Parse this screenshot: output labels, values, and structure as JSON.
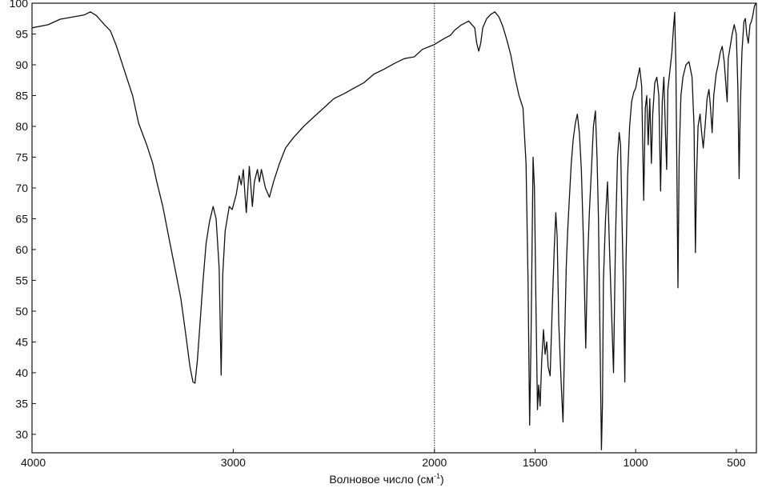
{
  "chart_data": {
    "type": "line",
    "title": "",
    "xlabel": "Волновое число (см",
    "xlabel_sup": "-1",
    "xlabel_close": ")",
    "ylabel": "",
    "xlim": [
      4000,
      400
    ],
    "ylim": [
      27,
      100
    ],
    "x_reversed": true,
    "grid": false,
    "x_ticks": [
      {
        "value": 4000,
        "label": "4000"
      },
      {
        "value": 3000,
        "label": "3000"
      },
      {
        "value": 2000,
        "label": "2000"
      },
      {
        "value": 1500,
        "label": "1500"
      },
      {
        "value": 1000,
        "label": "1000"
      },
      {
        "value": 500,
        "label": "500"
      }
    ],
    "y_ticks": [
      {
        "value": 100,
        "label": "100"
      },
      {
        "value": 95,
        "label": "95"
      },
      {
        "value": 90,
        "label": "90"
      },
      {
        "value": 85,
        "label": "85"
      },
      {
        "value": 80,
        "label": "80"
      },
      {
        "value": 75,
        "label": "75"
      },
      {
        "value": 70,
        "label": "70"
      },
      {
        "value": 65,
        "label": "65"
      },
      {
        "value": 60,
        "label": "60"
      },
      {
        "value": 55,
        "label": "55"
      },
      {
        "value": 50,
        "label": "50"
      },
      {
        "value": 45,
        "label": "45"
      },
      {
        "value": 40,
        "label": "40"
      },
      {
        "value": 35,
        "label": "35"
      },
      {
        "value": 30,
        "label": "30"
      }
    ],
    "series": [
      {
        "points": [
          [
            4000,
            96
          ],
          [
            3920,
            96.5
          ],
          [
            3860,
            97.4
          ],
          [
            3790,
            97.8
          ],
          [
            3740,
            98.1
          ],
          [
            3710,
            98.6
          ],
          [
            3680,
            98.0
          ],
          [
            3640,
            96.5
          ],
          [
            3610,
            95.5
          ],
          [
            3580,
            93
          ],
          [
            3540,
            89
          ],
          [
            3500,
            85
          ],
          [
            3470,
            80.5
          ],
          [
            3430,
            77
          ],
          [
            3400,
            74
          ],
          [
            3380,
            71
          ],
          [
            3350,
            67
          ],
          [
            3320,
            62
          ],
          [
            3290,
            57
          ],
          [
            3260,
            52
          ],
          [
            3235,
            46
          ],
          [
            3215,
            41
          ],
          [
            3200,
            38.5
          ],
          [
            3190,
            38.3
          ],
          [
            3178,
            42
          ],
          [
            3165,
            48
          ],
          [
            3150,
            55
          ],
          [
            3135,
            61
          ],
          [
            3118,
            64.5
          ],
          [
            3100,
            67
          ],
          [
            3085,
            65
          ],
          [
            3070,
            57
          ],
          [
            3060,
            39.6
          ],
          [
            3052,
            56
          ],
          [
            3040,
            63
          ],
          [
            3020,
            67
          ],
          [
            3005,
            66.5
          ],
          [
            2985,
            69
          ],
          [
            2970,
            72
          ],
          [
            2960,
            70.5
          ],
          [
            2950,
            73
          ],
          [
            2942,
            69
          ],
          [
            2935,
            66
          ],
          [
            2920,
            73.5
          ],
          [
            2905,
            67
          ],
          [
            2895,
            71
          ],
          [
            2880,
            73
          ],
          [
            2870,
            71
          ],
          [
            2860,
            73
          ],
          [
            2840,
            70
          ],
          [
            2820,
            68.5
          ],
          [
            2800,
            71
          ],
          [
            2770,
            74
          ],
          [
            2740,
            76.5
          ],
          [
            2700,
            78.2
          ],
          [
            2650,
            80
          ],
          [
            2600,
            81.5
          ],
          [
            2550,
            83
          ],
          [
            2500,
            84.5
          ],
          [
            2450,
            85.3
          ],
          [
            2400,
            86.2
          ],
          [
            2350,
            87.1
          ],
          [
            2300,
            88.5
          ],
          [
            2250,
            89.3
          ],
          [
            2200,
            90.2
          ],
          [
            2150,
            91
          ],
          [
            2100,
            91.3
          ],
          [
            2060,
            92.5
          ],
          [
            2000,
            93.3
          ],
          [
            1950,
            94.3
          ],
          [
            1920,
            94.8
          ],
          [
            1900,
            95.6
          ],
          [
            1870,
            96.4
          ],
          [
            1830,
            97.1
          ],
          [
            1800,
            96
          ],
          [
            1790,
            93.5
          ],
          [
            1780,
            92.2
          ],
          [
            1770,
            93.5
          ],
          [
            1760,
            96
          ],
          [
            1740,
            97.5
          ],
          [
            1720,
            98.2
          ],
          [
            1700,
            98.6
          ],
          [
            1680,
            97.8
          ],
          [
            1660,
            96.2
          ],
          [
            1640,
            94
          ],
          [
            1620,
            91.5
          ],
          [
            1600,
            88
          ],
          [
            1580,
            85
          ],
          [
            1560,
            83
          ],
          [
            1545,
            74
          ],
          [
            1535,
            55
          ],
          [
            1527,
            31.5
          ],
          [
            1520,
            45
          ],
          [
            1510,
            75
          ],
          [
            1503,
            70
          ],
          [
            1495,
            50
          ],
          [
            1488,
            34
          ],
          [
            1482,
            38
          ],
          [
            1475,
            34.6
          ],
          [
            1467,
            42
          ],
          [
            1458,
            47
          ],
          [
            1450,
            43
          ],
          [
            1442,
            45
          ],
          [
            1435,
            41
          ],
          [
            1425,
            39.5
          ],
          [
            1415,
            50
          ],
          [
            1405,
            60
          ],
          [
            1397,
            66
          ],
          [
            1390,
            62
          ],
          [
            1382,
            48
          ],
          [
            1370,
            38
          ],
          [
            1361,
            32
          ],
          [
            1353,
            45
          ],
          [
            1345,
            57
          ],
          [
            1338,
            63
          ],
          [
            1330,
            68
          ],
          [
            1320,
            74
          ],
          [
            1310,
            78
          ],
          [
            1300,
            80.5
          ],
          [
            1290,
            82
          ],
          [
            1280,
            79
          ],
          [
            1270,
            73
          ],
          [
            1260,
            62
          ],
          [
            1248,
            44
          ],
          [
            1240,
            57
          ],
          [
            1230,
            66
          ],
          [
            1220,
            73
          ],
          [
            1210,
            80
          ],
          [
            1200,
            82.5
          ],
          [
            1192,
            75
          ],
          [
            1185,
            65
          ],
          [
            1178,
            48
          ],
          [
            1170,
            27.5
          ],
          [
            1165,
            35
          ],
          [
            1160,
            55
          ],
          [
            1150,
            65
          ],
          [
            1140,
            71
          ],
          [
            1130,
            60
          ],
          [
            1120,
            50
          ],
          [
            1110,
            40
          ],
          [
            1100,
            62
          ],
          [
            1090,
            75
          ],
          [
            1082,
            79
          ],
          [
            1075,
            77
          ],
          [
            1068,
            65
          ],
          [
            1060,
            52
          ],
          [
            1054,
            38.5
          ],
          [
            1048,
            58
          ],
          [
            1040,
            72
          ],
          [
            1030,
            80
          ],
          [
            1020,
            84
          ],
          [
            1010,
            85.5
          ],
          [
            1000,
            86.2
          ],
          [
            990,
            88
          ],
          [
            980,
            89.5
          ],
          [
            970,
            86.5
          ],
          [
            960,
            68
          ],
          [
            952,
            83
          ],
          [
            945,
            85
          ],
          [
            938,
            77
          ],
          [
            930,
            84.5
          ],
          [
            922,
            74
          ],
          [
            915,
            82
          ],
          [
            905,
            87
          ],
          [
            895,
            88
          ],
          [
            885,
            85
          ],
          [
            876,
            69.5
          ],
          [
            868,
            84
          ],
          [
            860,
            88
          ],
          [
            852,
            79
          ],
          [
            846,
            73
          ],
          [
            840,
            86
          ],
          [
            830,
            89
          ],
          [
            820,
            92
          ],
          [
            812,
            96
          ],
          [
            806,
            98.5
          ],
          [
            800,
            90
          ],
          [
            795,
            72
          ],
          [
            790,
            53.8
          ],
          [
            784,
            75
          ],
          [
            775,
            85
          ],
          [
            765,
            88
          ],
          [
            750,
            90
          ],
          [
            735,
            90.5
          ],
          [
            720,
            88
          ],
          [
            710,
            80
          ],
          [
            703,
            59.5
          ],
          [
            697,
            72
          ],
          [
            690,
            80
          ],
          [
            680,
            82
          ],
          [
            672,
            79
          ],
          [
            664,
            76.5
          ],
          [
            655,
            80
          ],
          [
            645,
            84.5
          ],
          [
            636,
            86
          ],
          [
            628,
            83
          ],
          [
            620,
            79
          ],
          [
            612,
            85
          ],
          [
            600,
            88.5
          ],
          [
            590,
            90
          ],
          [
            580,
            92
          ],
          [
            570,
            93
          ],
          [
            560,
            90.5
          ],
          [
            550,
            86
          ],
          [
            545,
            84
          ],
          [
            540,
            91
          ],
          [
            530,
            93
          ],
          [
            520,
            95
          ],
          [
            510,
            96.5
          ],
          [
            500,
            95
          ],
          [
            492,
            86
          ],
          [
            486,
            71.5
          ],
          [
            480,
            83
          ],
          [
            472,
            92
          ],
          [
            462,
            97
          ],
          [
            455,
            97.5
          ],
          [
            448,
            95
          ],
          [
            440,
            93.5
          ],
          [
            432,
            96.5
          ],
          [
            425,
            97
          ],
          [
            418,
            98
          ],
          [
            410,
            99.5
          ],
          [
            403,
            100
          ]
        ]
      }
    ]
  }
}
